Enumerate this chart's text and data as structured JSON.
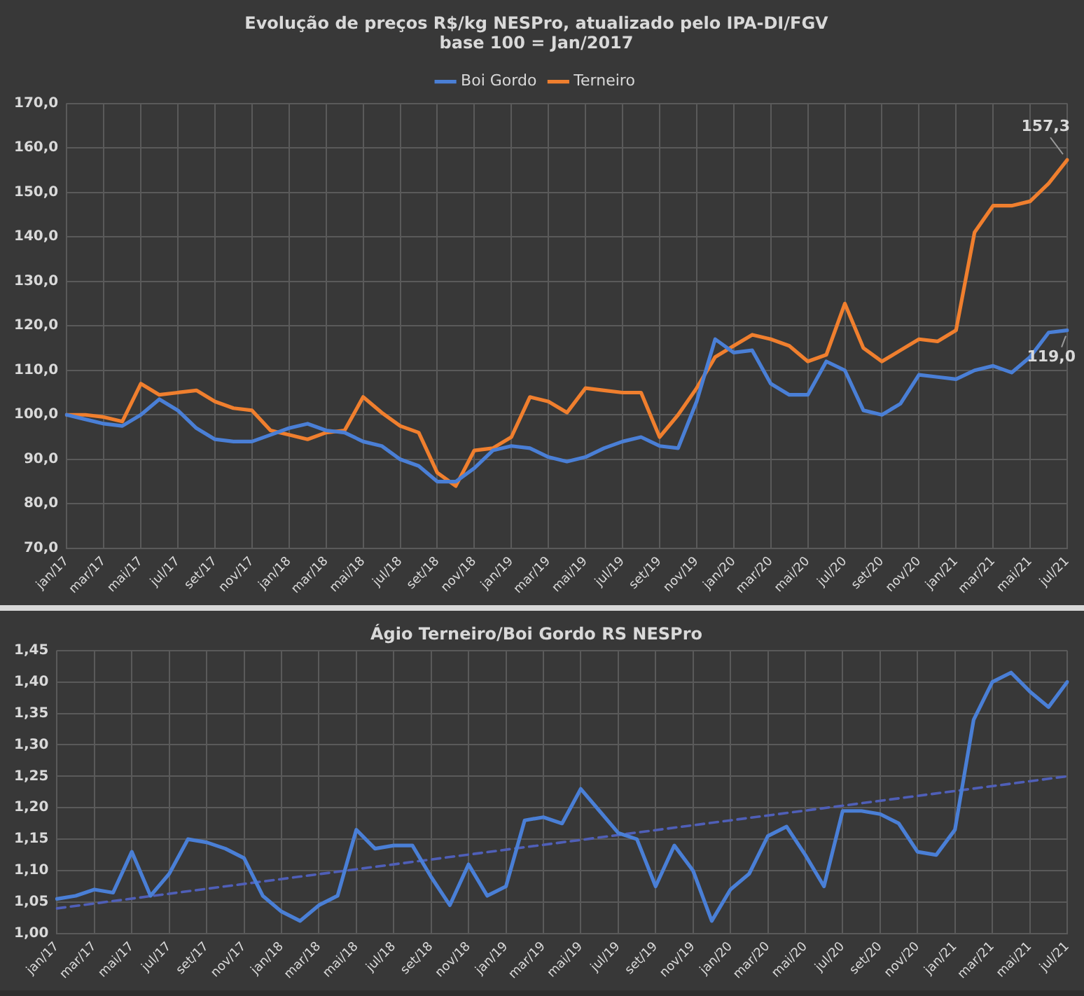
{
  "chart_data": [
    {
      "type": "line",
      "title": "Evolução de preços R$/kg NESPro, atualizado pelo IPA-DI/FGV",
      "subtitle": "base 100 = Jan/2017",
      "categories": [
        "jan/17",
        null,
        "mar/17",
        null,
        "mai/17",
        null,
        "jul/17",
        null,
        "set/17",
        null,
        "nov/17",
        null,
        "jan/18",
        null,
        "mar/18",
        null,
        "mai/18",
        null,
        "jul/18",
        null,
        "set/18",
        null,
        "nov/18",
        null,
        "jan/19",
        null,
        "mar/19",
        null,
        "mai/19",
        null,
        "jul/19",
        null,
        "set/19",
        null,
        "nov/19",
        null,
        "jan/20",
        null,
        "mar/20",
        null,
        "mai/20",
        null,
        "jul/20",
        null,
        "set/20",
        null,
        "nov/20",
        null,
        "jan/21",
        null,
        "mar/21",
        null,
        "mai/21",
        null,
        "jul/21"
      ],
      "series": [
        {
          "name": "Boi Gordo",
          "color": "#4a7fd6",
          "values": [
            100,
            99,
            98,
            97.5,
            100,
            103.5,
            101,
            97,
            94.5,
            94,
            94,
            95.5,
            97,
            98,
            96.5,
            96,
            94,
            93,
            90,
            88.5,
            85,
            85,
            88,
            92,
            93,
            92.5,
            90.5,
            89.5,
            90.5,
            92.5,
            94,
            95,
            93,
            92.5,
            103,
            117,
            114,
            114.5,
            107,
            104.5,
            104.5,
            112,
            110,
            101,
            100,
            102.5,
            109,
            108.5,
            108,
            110,
            111,
            109.5,
            113,
            118.5,
            119
          ]
        },
        {
          "name": "Terneiro",
          "color": "#f07f2e",
          "values": [
            100,
            100,
            99.5,
            98.5,
            107,
            104.5,
            105,
            105.5,
            103,
            101.5,
            101,
            96.5,
            95.5,
            94.5,
            96,
            96.5,
            104,
            100.5,
            97.5,
            96,
            87,
            84,
            92,
            92.5,
            95,
            104,
            103,
            100.5,
            106,
            105.5,
            105,
            105,
            95,
            100,
            106,
            113,
            115.5,
            118,
            117,
            115.5,
            112,
            113.5,
            125,
            115,
            112,
            114.5,
            117,
            116.5,
            119,
            141,
            147,
            147,
            148,
            152,
            157.3
          ]
        }
      ],
      "ylim": [
        70,
        170
      ],
      "yticks": [
        {
          "value": 70,
          "label": "70,0"
        },
        {
          "value": 80,
          "label": "80,0"
        },
        {
          "value": 90,
          "label": "90,0"
        },
        {
          "value": 100,
          "label": "100,0"
        },
        {
          "value": 110,
          "label": "110,0"
        },
        {
          "value": 120,
          "label": "120,0"
        },
        {
          "value": 130,
          "label": "130,0"
        },
        {
          "value": 140,
          "label": "140,0"
        },
        {
          "value": 150,
          "label": "150,0"
        },
        {
          "value": 160,
          "label": "160,0"
        },
        {
          "value": 170,
          "label": "170,0"
        }
      ],
      "grid": true,
      "legend": "top",
      "marker": "none",
      "line_style": "solid",
      "annotations": [
        {
          "text": "157,3",
          "x": "jul/21",
          "y": 157.3
        },
        {
          "text": "119,0",
          "x": "jul/21",
          "y": 119
        }
      ]
    },
    {
      "type": "line",
      "title": "Ágio Terneiro/Boi Gordo RS NESPro",
      "categories": [
        "jan/17",
        null,
        "mar/17",
        null,
        "mai/17",
        null,
        "jul/17",
        null,
        "set/17",
        null,
        "nov/17",
        null,
        "jan/18",
        null,
        "mar/18",
        null,
        "mai/18",
        null,
        "jul/18",
        null,
        "set/18",
        null,
        "nov/18",
        null,
        "jan/19",
        null,
        "mar/19",
        null,
        "mai/19",
        null,
        "jul/19",
        null,
        "set/19",
        null,
        "nov/19",
        null,
        "jan/20",
        null,
        "mar/20",
        null,
        "mai/20",
        null,
        "jul/20",
        null,
        "set/20",
        null,
        "nov/20",
        null,
        "jan/21",
        null,
        "mar/21",
        null,
        "mai/21",
        null,
        "jul/21"
      ],
      "series": [
        {
          "color": "#4a7fd6",
          "values": [
            1.055,
            1.06,
            1.07,
            1.065,
            1.13,
            1.06,
            1.095,
            1.15,
            1.145,
            1.135,
            1.12,
            1.06,
            1.035,
            1.02,
            1.045,
            1.06,
            1.165,
            1.135,
            1.14,
            1.14,
            1.09,
            1.045,
            1.11,
            1.06,
            1.075,
            1.18,
            1.185,
            1.175,
            1.23,
            1.195,
            1.16,
            1.15,
            1.075,
            1.14,
            1.1,
            1.02,
            1.07,
            1.095,
            1.155,
            1.17,
            1.125,
            1.075,
            1.195,
            1.195,
            1.19,
            1.175,
            1.13,
            1.125,
            1.165,
            1.34,
            1.4,
            1.415,
            1.385,
            1.36,
            1.4
          ]
        },
        {
          "type": "line",
          "line_style": "dashed",
          "color": "#4f5fb8",
          "values": [
            1.04,
            null,
            null,
            null,
            null,
            null,
            null,
            null,
            null,
            null,
            null,
            null,
            null,
            null,
            null,
            null,
            null,
            null,
            null,
            null,
            null,
            null,
            null,
            null,
            null,
            null,
            null,
            null,
            null,
            null,
            null,
            null,
            null,
            null,
            null,
            null,
            null,
            null,
            null,
            null,
            null,
            null,
            null,
            null,
            null,
            null,
            null,
            null,
            null,
            null,
            null,
            null,
            null,
            null,
            1.25
          ]
        }
      ],
      "ylim": [
        1,
        1.45
      ],
      "yticks": [
        {
          "value": 1,
          "label": "1,00"
        },
        {
          "value": 1.05,
          "label": "1,05"
        },
        {
          "value": 1.1,
          "label": "1,10"
        },
        {
          "value": 1.15,
          "label": "1,15"
        },
        {
          "value": 1.2,
          "label": "1,20"
        },
        {
          "value": 1.25,
          "label": "1,25"
        },
        {
          "value": 1.3,
          "label": "1,30"
        },
        {
          "value": 1.35,
          "label": "1,35"
        },
        {
          "value": 1.4,
          "label": "1,40"
        },
        {
          "value": 1.45,
          "label": "1,45"
        }
      ],
      "grid": true,
      "marker": "none",
      "line_style": "solid"
    }
  ]
}
